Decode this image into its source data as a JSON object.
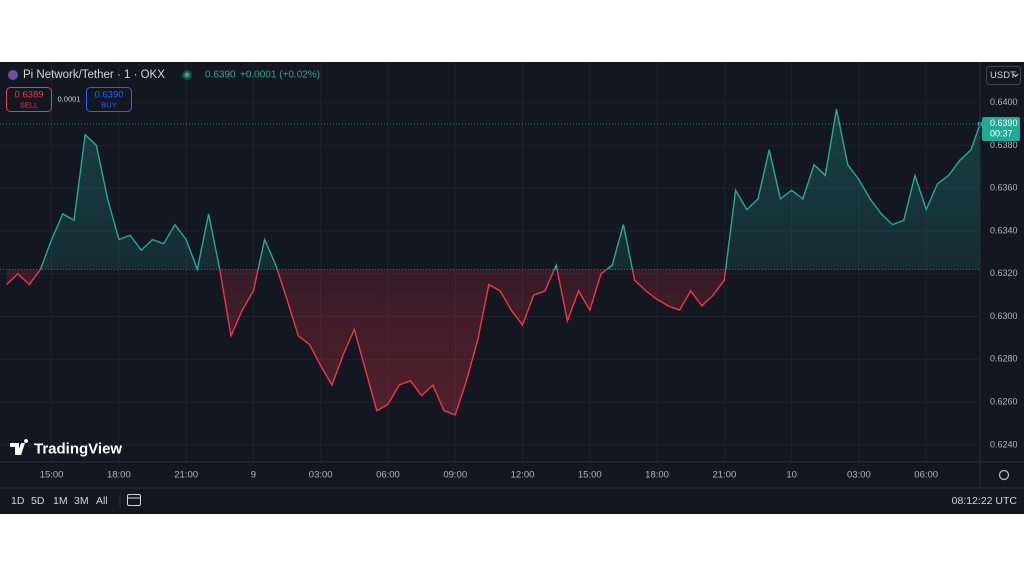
{
  "header": {
    "symbol": "Pi Network/Tether · 1 · OKX",
    "last": "0.6390",
    "change": "+0.0001 (+0.02%)",
    "currency": "USDT"
  },
  "order_panel": {
    "sell_price": "0.6389",
    "sell_label": "SELL",
    "spread": "0.0001",
    "buy_price": "0.6390",
    "buy_label": "BUY"
  },
  "price_label": {
    "price": "0.6390",
    "countdown": "00:37"
  },
  "watermark": "TradingView",
  "toolbar": {
    "ranges": [
      "1D",
      "5D",
      "1M",
      "3M",
      "All"
    ],
    "clock": "08:12:22 UTC"
  },
  "chart": {
    "type": "line",
    "x": [
      13,
      13.5,
      14,
      14.5,
      15,
      15.5,
      16,
      16.5,
      17,
      17.5,
      18,
      18.5,
      19,
      19.5,
      20,
      20.5,
      21,
      21.5,
      22,
      22.5,
      23,
      23.5,
      24,
      24.5,
      25,
      25.5,
      26,
      26.5,
      27,
      27.5,
      28,
      28.5,
      29,
      29.5,
      30,
      30.5,
      31,
      31.5,
      32,
      32.5,
      33,
      33.5,
      34,
      34.5,
      35,
      35.5,
      36,
      36.5,
      37,
      37.5,
      38,
      38.5,
      39,
      39.5,
      40,
      40.5,
      41,
      41.5,
      42,
      42.5,
      43,
      43.5,
      44,
      44.5,
      45,
      45.5,
      46,
      46.5,
      47,
      47.5,
      48,
      48.5,
      49,
      49.5,
      50,
      50.5,
      51,
      51.5,
      52,
      52.5,
      53,
      53.5,
      54,
      54.5,
      55,
      55.5,
      56,
      56.4
    ],
    "values": [
      0.6315,
      0.632,
      0.6315,
      0.6322,
      0.6336,
      0.6348,
      0.6345,
      0.6385,
      0.638,
      0.6355,
      0.6336,
      0.6338,
      0.6331,
      0.6336,
      0.6334,
      0.6343,
      0.6336,
      0.6322,
      0.6348,
      0.6322,
      0.6291,
      0.6303,
      0.6312,
      0.6336,
      0.6324,
      0.6308,
      0.6291,
      0.6287,
      0.6277,
      0.6268,
      0.6282,
      0.6294,
      0.6275,
      0.6256,
      0.6259,
      0.6268,
      0.627,
      0.6263,
      0.6268,
      0.6256,
      0.6254,
      0.627,
      0.6289,
      0.6315,
      0.6312,
      0.6303,
      0.6296,
      0.631,
      0.6312,
      0.6324,
      0.6298,
      0.6312,
      0.6303,
      0.632,
      0.6324,
      0.6343,
      0.6317,
      0.6312,
      0.6308,
      0.6305,
      0.6303,
      0.6312,
      0.6305,
      0.631,
      0.6317,
      0.6359,
      0.635,
      0.6355,
      0.6378,
      0.6355,
      0.6359,
      0.6355,
      0.6371,
      0.6366,
      0.6397,
      0.6371,
      0.6364,
      0.6355,
      0.6348,
      0.6343,
      0.6345,
      0.6366,
      0.635,
      0.6362,
      0.6366,
      0.6373,
      0.6378,
      0.639
    ],
    "up_color": "#22ab94",
    "down_color": "#f23645",
    "baseline": 0.6322,
    "xlim": [
      12.7,
      56.4
    ],
    "ylim": [
      0.6232,
      0.6419
    ],
    "xticks": [
      {
        "value": 15,
        "label": "15:00"
      },
      {
        "value": 18,
        "label": "18:00"
      },
      {
        "value": 21,
        "label": "21:00"
      },
      {
        "value": 24,
        "label": "9"
      },
      {
        "value": 27,
        "label": "03:00"
      },
      {
        "value": 30,
        "label": "06:00"
      },
      {
        "value": 33,
        "label": "09:00"
      },
      {
        "value": 36,
        "label": "12:00"
      },
      {
        "value": 39,
        "label": "15:00"
      },
      {
        "value": 42,
        "label": "18:00"
      },
      {
        "value": 45,
        "label": "21:00"
      },
      {
        "value": 48,
        "label": "10"
      },
      {
        "value": 51,
        "label": "03:00"
      },
      {
        "value": 54,
        "label": "06:00"
      }
    ],
    "yticks": [
      {
        "value": 0.624,
        "label": "0.6240"
      },
      {
        "value": 0.626,
        "label": "0.6260"
      },
      {
        "value": 0.628,
        "label": "0.6280"
      },
      {
        "value": 0.63,
        "label": "0.6300"
      },
      {
        "value": 0.632,
        "label": "0.6320"
      },
      {
        "value": 0.634,
        "label": "0.6340"
      },
      {
        "value": 0.636,
        "label": "0.6360"
      },
      {
        "value": 0.638,
        "label": "0.6380"
      },
      {
        "value": 0.64,
        "label": "0.6400"
      }
    ],
    "grid": true
  }
}
